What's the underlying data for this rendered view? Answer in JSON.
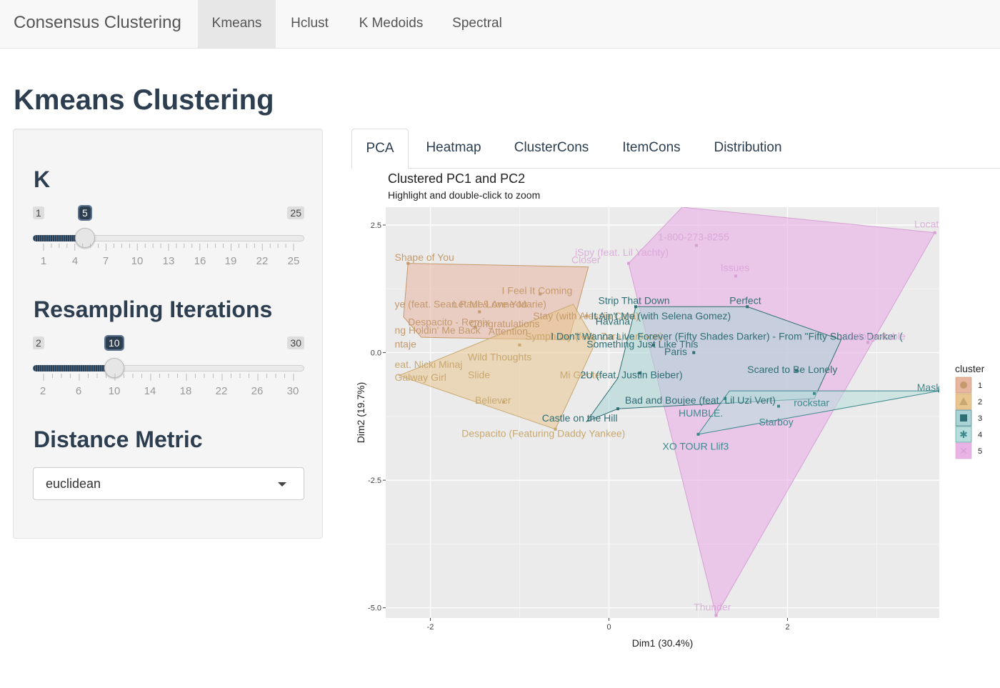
{
  "navbar": {
    "brand": "Consensus Clustering",
    "items": [
      "Kmeans",
      "Hclust",
      "K Medoids",
      "Spectral"
    ],
    "active": "Kmeans"
  },
  "page_title": "Kmeans Clustering",
  "sidebar": {
    "k": {
      "label": "K",
      "min": "1",
      "max": "25",
      "value": "5",
      "ticks": [
        "1",
        "4",
        "7",
        "10",
        "13",
        "16",
        "19",
        "22",
        "25"
      ]
    },
    "iterations": {
      "label": "Resampling Iterations",
      "min": "2",
      "max": "30",
      "value": "10",
      "ticks": [
        "2",
        "6",
        "10",
        "14",
        "18",
        "22",
        "26",
        "30"
      ]
    },
    "distance": {
      "label": "Distance Metric",
      "value": "euclidean"
    }
  },
  "tabs": [
    "PCA",
    "Heatmap",
    "ClusterCons",
    "ItemCons",
    "Distribution"
  ],
  "active_tab": "PCA",
  "plot": {
    "title": "Clustered PC1 and PC2",
    "subtitle": "Highlight and double-click to zoom"
  },
  "chart_data": {
    "type": "scatter",
    "xlabel": "Dim1 (30.4%)",
    "ylabel": "Dim2 (19.7%)",
    "xlim": [
      -2.5,
      3.7
    ],
    "ylim": [
      -5.2,
      2.85
    ],
    "x_ticks": [
      "-2",
      "0",
      "2"
    ],
    "y_ticks": [
      "2.5",
      "0.0",
      "-2.5",
      "-5.0"
    ],
    "legend": {
      "title": "cluster",
      "position": "right",
      "entries": [
        "1",
        "2",
        "3",
        "4",
        "5"
      ]
    },
    "colors": {
      "1": "#c49a6c",
      "2": "#c8a870",
      "3": "#2f6e73",
      "4": "#3e8a8e",
      "5": "#d7a0d4"
    },
    "hulls": [
      {
        "cluster": "1",
        "points": [
          [
            -2.25,
            1.75
          ],
          [
            -0.23,
            1.68
          ],
          [
            -0.45,
            0.25
          ],
          [
            -2.1,
            0.3
          ],
          [
            -2.3,
            0.7
          ]
        ]
      },
      {
        "cluster": "2",
        "points": [
          [
            -2.35,
            -0.45
          ],
          [
            -0.4,
            0.95
          ],
          [
            -0.15,
            0.2
          ],
          [
            -0.6,
            -1.5
          ],
          [
            -2.1,
            -0.6
          ]
        ]
      },
      {
        "cluster": "3",
        "points": [
          [
            0.3,
            0.9
          ],
          [
            1.55,
            0.9
          ],
          [
            2.6,
            0.25
          ],
          [
            2.3,
            -0.9
          ],
          [
            0.1,
            -1.1
          ],
          [
            -0.25,
            -1.35
          ],
          [
            0.1,
            -0.5
          ]
        ]
      },
      {
        "cluster": "4",
        "points": [
          [
            1.35,
            -0.75
          ],
          [
            3.7,
            -0.75
          ],
          [
            1.0,
            -1.6
          ]
        ]
      },
      {
        "cluster": "5",
        "points": [
          [
            0.82,
            2.85
          ],
          [
            3.65,
            2.35
          ],
          [
            1.2,
            -5.15
          ],
          [
            0.22,
            1.75
          ]
        ]
      }
    ],
    "points": [
      {
        "label": "Shape of You",
        "x": -2.25,
        "y": 1.75,
        "cluster": "1"
      },
      {
        "label": "I Feel It Coming",
        "x": -0.77,
        "y": 1.15,
        "cluster": "1"
      },
      {
        "label": "Stay (with Alessia Cara)",
        "x": -0.25,
        "y": 0.72,
        "cluster": "1"
      },
      {
        "label": "Despacito - Remix",
        "x": -1.5,
        "y": 0.5,
        "cluster": "1"
      },
      {
        "label": "Let Me Love You",
        "x": -1.45,
        "y": 0.8,
        "cluster": "1"
      },
      {
        "label": "Wild Thoughts",
        "x": -1.0,
        "y": 0.15,
        "cluster": "2"
      },
      {
        "label": "Believer",
        "x": -1.18,
        "y": -0.97,
        "cluster": "2"
      },
      {
        "label": "Despacito (Featuring Daddy Yankee)",
        "x": -0.6,
        "y": -1.5,
        "cluster": "2"
      },
      {
        "label": "Strip That Down",
        "x": 0.3,
        "y": 0.9,
        "cluster": "3"
      },
      {
        "label": "Perfect",
        "x": 1.55,
        "y": 0.9,
        "cluster": "3"
      },
      {
        "label": "Paris",
        "x": 0.95,
        "y": 0.0,
        "cluster": "3"
      },
      {
        "label": "Something Just Like This",
        "x": 0.5,
        "y": 0.15,
        "cluster": "3"
      },
      {
        "label": "Scared to Be Lonely",
        "x": 2.1,
        "y": -0.35,
        "cluster": "3"
      },
      {
        "label": "2U (feat. Justin Bieber)",
        "x": 0.35,
        "y": -0.4,
        "cluster": "3"
      },
      {
        "label": "Castle on the Hill",
        "x": 0.1,
        "y": -1.1,
        "cluster": "3"
      },
      {
        "label": "HUMBLE.",
        "x": 1.3,
        "y": -0.9,
        "cluster": "4"
      },
      {
        "label": "rockstar",
        "x": 2.3,
        "y": -0.8,
        "cluster": "4"
      },
      {
        "label": "Starboy",
        "x": 1.9,
        "y": -1.05,
        "cluster": "4"
      },
      {
        "label": "XO TOUR Llif3",
        "x": 1.0,
        "y": -1.6,
        "cluster": "4"
      },
      {
        "label": "Mask Off",
        "x": 3.7,
        "y": -0.75,
        "cluster": "4"
      },
      {
        "label": "1-800-273-8255",
        "x": 0.98,
        "y": 2.1,
        "cluster": "5"
      },
      {
        "label": "iSpy (feat. Lil Yachty)",
        "x": 0.22,
        "y": 1.75,
        "cluster": "5"
      },
      {
        "label": "Issues",
        "x": 1.42,
        "y": 1.5,
        "cluster": "5"
      },
      {
        "label": "Location",
        "x": 3.65,
        "y": 2.35,
        "cluster": "5"
      },
      {
        "label": "Thunder",
        "x": 1.2,
        "y": -5.15,
        "cluster": "5"
      },
      {
        "label": "Unforgettable",
        "x": 2.9,
        "y": 0.2,
        "cluster": "5"
      }
    ],
    "text_labels": [
      {
        "text": "Shape of You",
        "x": -2.4,
        "y": 1.8,
        "cluster": "1"
      },
      {
        "text": "I Feel It Coming",
        "x": -1.2,
        "y": 1.15,
        "cluster": "1"
      },
      {
        "text": "Stay (with Alessia Cara)",
        "x": -0.85,
        "y": 0.65,
        "cluster": "1"
      },
      {
        "text": "Let Me Love You",
        "x": -1.75,
        "y": 0.88,
        "cluster": "1"
      },
      {
        "text": "ye (feat. Sean Paul & Anne-Marie)",
        "x": -2.4,
        "y": 0.88,
        "cluster": "1"
      },
      {
        "text": "Despacito - Remix",
        "x": -2.25,
        "y": 0.53,
        "cluster": "1"
      },
      {
        "text": "ng Holdin' Me Back",
        "x": -2.4,
        "y": 0.37,
        "cluster": "1"
      },
      {
        "text": "Attention",
        "x": -1.35,
        "y": 0.35,
        "cluster": "1"
      },
      {
        "text": "Congratulations",
        "x": -1.56,
        "y": 0.5,
        "cluster": "1"
      },
      {
        "text": "ntaje",
        "x": -2.4,
        "y": 0.1,
        "cluster": "1"
      },
      {
        "text": "Symphony (feat. Zara Larsson)",
        "x": -0.94,
        "y": 0.25,
        "cluster": "2"
      },
      {
        "text": "Wild Thoughts",
        "x": -1.58,
        "y": -0.15,
        "cluster": "2"
      },
      {
        "text": "eat. Nicki Minaj",
        "x": -2.4,
        "y": -0.3,
        "cluster": "2"
      },
      {
        "text": "Galway Girl",
        "x": -2.4,
        "y": -0.55,
        "cluster": "2"
      },
      {
        "text": "Slide",
        "x": -1.58,
        "y": -0.5,
        "cluster": "2"
      },
      {
        "text": "Mi Gente",
        "x": -0.55,
        "y": -0.5,
        "cluster": "2"
      },
      {
        "text": "Believer",
        "x": -1.5,
        "y": -1.0,
        "cluster": "2"
      },
      {
        "text": "Despacito (Featuring Daddy Yankee)",
        "x": -1.65,
        "y": -1.65,
        "cluster": "2"
      },
      {
        "text": "Strip That Down",
        "x": -0.12,
        "y": 0.95,
        "cluster": "3"
      },
      {
        "text": "Perfect",
        "x": 1.35,
        "y": 0.95,
        "cluster": "3"
      },
      {
        "text": "It Ain't Me (with Selena Gomez)",
        "x": -0.2,
        "y": 0.65,
        "cluster": "3"
      },
      {
        "text": "Havana",
        "x": -0.15,
        "y": 0.55,
        "cluster": "3"
      },
      {
        "text": "I Don't Wanna Live Forever (Fifty Shades Darker) - From \"Fifty Shades Darker (",
        "x": -0.65,
        "y": 0.25,
        "cluster": "3"
      },
      {
        "text": "Something Just Like This",
        "x": -0.25,
        "y": 0.1,
        "cluster": "3"
      },
      {
        "text": "Paris",
        "x": 0.62,
        "y": -0.05,
        "cluster": "3"
      },
      {
        "text": "Scared to Be Lonely",
        "x": 1.55,
        "y": -0.4,
        "cluster": "3"
      },
      {
        "text": "2U (feat. Justin Bieber)",
        "x": -0.32,
        "y": -0.5,
        "cluster": "3"
      },
      {
        "text": "Bad and Boujee (feat. Lil Uzi Vert)",
        "x": 0.18,
        "y": -1.0,
        "cluster": "3"
      },
      {
        "text": "Castle on the Hill",
        "x": -0.75,
        "y": -1.35,
        "cluster": "3"
      },
      {
        "text": "rockstar",
        "x": 2.07,
        "y": -1.05,
        "cluster": "4"
      },
      {
        "text": "HUMBLE.",
        "x": 0.78,
        "y": -1.25,
        "cluster": "4"
      },
      {
        "text": "Starboy",
        "x": 1.68,
        "y": -1.43,
        "cluster": "4"
      },
      {
        "text": "XO TOUR Llif3",
        "x": 0.6,
        "y": -1.9,
        "cluster": "4"
      },
      {
        "text": "Mask",
        "x": 3.45,
        "y": -0.75,
        "cluster": "4"
      },
      {
        "text": "Locati",
        "x": 3.42,
        "y": 2.45,
        "cluster": "5"
      },
      {
        "text": "1-800-273-8255",
        "x": 0.55,
        "y": 2.2,
        "cluster": "5"
      },
      {
        "text": "iSpy (feat. Lil Yachty)",
        "x": -0.38,
        "y": 1.9,
        "cluster": "5"
      },
      {
        "text": "Closer",
        "x": -0.42,
        "y": 1.75,
        "cluster": "5"
      },
      {
        "text": "Issues",
        "x": 1.25,
        "y": 1.6,
        "cluster": "5"
      },
      {
        "text": "Unforgettable",
        "x": 2.65,
        "y": 0.25,
        "cluster": "5"
      },
      {
        "text": "Thunder",
        "x": 0.95,
        "y": -5.05,
        "cluster": "5"
      }
    ]
  }
}
